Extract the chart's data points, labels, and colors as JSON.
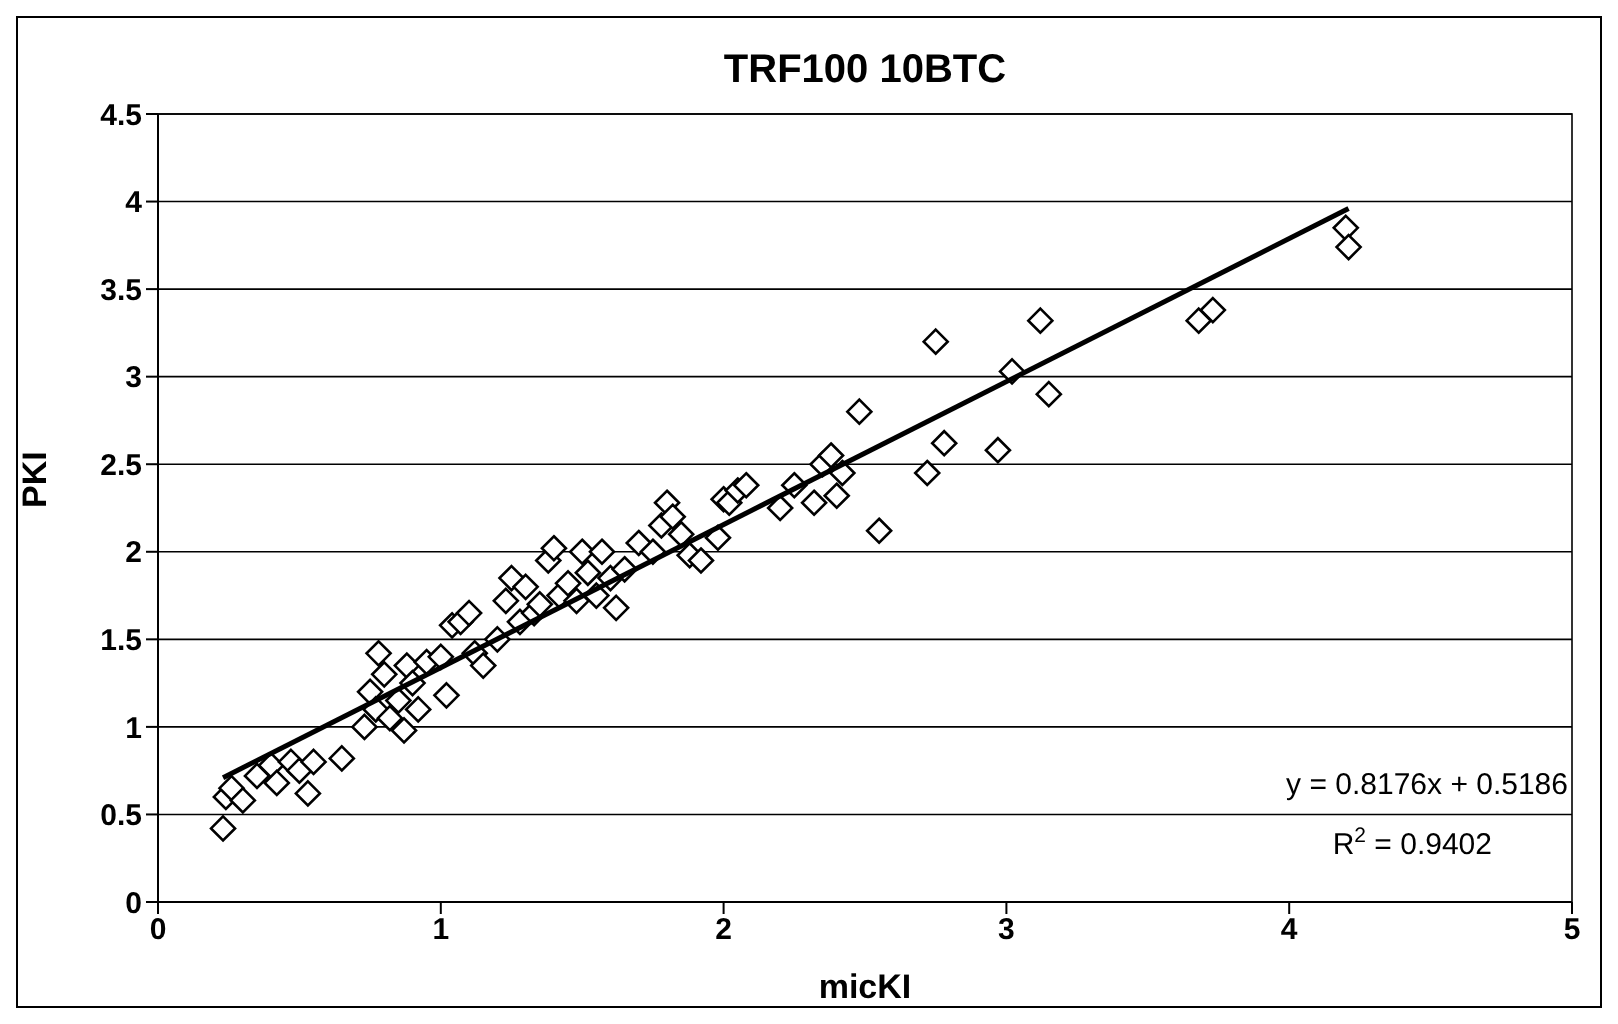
{
  "chart_data": {
    "type": "scatter",
    "title": "TRF100 10BTC",
    "xlabel": "micKI",
    "ylabel": "PKI",
    "xlim": [
      0,
      5
    ],
    "xticks": [
      0,
      1,
      2,
      3,
      4,
      5
    ],
    "ylim": [
      0,
      4.5
    ],
    "yticks": [
      0,
      0.5,
      1,
      1.5,
      2,
      2.5,
      3,
      3.5,
      4,
      4.5
    ],
    "grid": "y",
    "annotations": [
      "y = 0.8176x + 0.5186",
      "R$^{2}$ = 0.9402"
    ],
    "series": [
      {
        "type": "scatter",
        "color": "#000000",
        "marker": "diamond",
        "x": [
          0.23,
          0.24,
          0.26,
          0.3,
          0.35,
          0.4,
          0.42,
          0.47,
          0.5,
          0.53,
          0.55,
          0.65,
          0.73,
          0.75,
          0.77,
          0.78,
          0.8,
          0.82,
          0.85,
          0.87,
          0.88,
          0.9,
          0.92,
          0.95,
          1.0,
          1.02,
          1.04,
          1.07,
          1.1,
          1.12,
          1.15,
          1.2,
          1.23,
          1.25,
          1.28,
          1.3,
          1.33,
          1.35,
          1.38,
          1.4,
          1.42,
          1.45,
          1.48,
          1.5,
          1.52,
          1.55,
          1.57,
          1.6,
          1.62,
          1.65,
          1.7,
          1.75,
          1.78,
          1.8,
          1.82,
          1.85,
          1.88,
          1.92,
          1.98,
          2.0,
          2.02,
          2.05,
          2.08,
          2.2,
          2.25,
          2.32,
          2.35,
          2.38,
          2.4,
          2.42,
          2.48,
          2.55,
          2.72,
          2.75,
          2.78,
          2.97,
          3.02,
          3.12,
          3.15,
          3.68,
          3.73,
          4.2,
          4.21
        ],
        "values": [
          0.42,
          0.6,
          0.65,
          0.58,
          0.72,
          0.78,
          0.68,
          0.8,
          0.75,
          0.62,
          0.8,
          0.82,
          1.0,
          1.2,
          1.1,
          1.42,
          1.3,
          1.05,
          1.15,
          0.98,
          1.35,
          1.25,
          1.1,
          1.37,
          1.4,
          1.18,
          1.58,
          1.6,
          1.65,
          1.42,
          1.35,
          1.5,
          1.72,
          1.85,
          1.6,
          1.8,
          1.65,
          1.7,
          1.95,
          2.02,
          1.75,
          1.82,
          1.72,
          2.0,
          1.88,
          1.75,
          2.0,
          1.85,
          1.68,
          1.9,
          2.05,
          2.0,
          2.15,
          2.28,
          2.2,
          2.1,
          1.98,
          1.95,
          2.08,
          2.3,
          2.28,
          2.35,
          2.38,
          2.25,
          2.38,
          2.28,
          2.5,
          2.55,
          2.32,
          2.45,
          2.8,
          2.12,
          2.45,
          3.2,
          2.62,
          2.58,
          3.03,
          3.32,
          2.9,
          3.32,
          3.38,
          3.85,
          3.74
        ]
      },
      {
        "type": "line",
        "color": "#000000",
        "marker": "none",
        "line_style": "solid",
        "x": [
          0.23,
          4.21
        ],
        "values": [
          0.71,
          3.96
        ]
      }
    ]
  }
}
